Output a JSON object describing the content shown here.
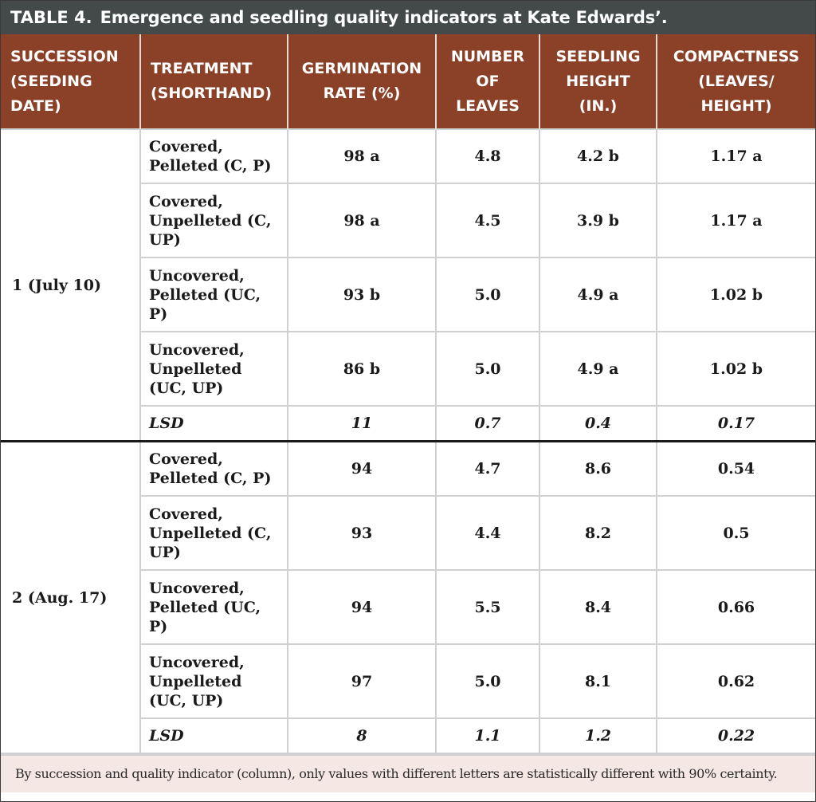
{
  "title": {
    "label": "TABLE 4.",
    "text": "Emergence and seedling quality indicators at Kate Edwards’."
  },
  "headers": [
    "SUCCESSION (SEEDING DATE)",
    "TREATMENT (SHORTHAND)",
    "GERMINATION RATE (%)",
    "NUMBER OF LEAVES",
    "SEEDLING HEIGHT (IN.)",
    "COMPACTNESS (LEAVES/ HEIGHT)"
  ],
  "groups": [
    {
      "succession": "1 (July 10)",
      "rows": [
        {
          "treatment": "Covered, Pelleted (C, P)",
          "germination": "98 a",
          "leaves": "4.8",
          "height": "4.2 b",
          "compactness": "1.17 a"
        },
        {
          "treatment": "Covered, Unpelleted (C, UP)",
          "germination": "98 a",
          "leaves": "4.5",
          "height": "3.9 b",
          "compactness": "1.17 a"
        },
        {
          "treatment": "Uncovered, Pelleted (UC, P)",
          "germination": "93 b",
          "leaves": "5.0",
          "height": "4.9 a",
          "compactness": "1.02 b"
        },
        {
          "treatment": "Uncovered, Unpelleted (UC, UP)",
          "germination": "86 b",
          "leaves": "5.0",
          "height": "4.9 a",
          "compactness": "1.02 b"
        }
      ],
      "lsd": {
        "label": "LSD",
        "germination": "11",
        "leaves": "0.7",
        "height": "0.4",
        "compactness": "0.17"
      }
    },
    {
      "succession": "2 (Aug. 17)",
      "rows": [
        {
          "treatment": "Covered, Pelleted (C, P)",
          "germination": "94",
          "leaves": "4.7",
          "height": "8.6",
          "compactness": "0.54"
        },
        {
          "treatment": "Covered, Unpelleted (C, UP)",
          "germination": "93",
          "leaves": "4.4",
          "height": "8.2",
          "compactness": "0.5"
        },
        {
          "treatment": "Uncovered, Pelleted (UC, P)",
          "germination": "94",
          "leaves": "5.5",
          "height": "8.4",
          "compactness": "0.66"
        },
        {
          "treatment": "Uncovered, Unpelleted (UC, UP)",
          "germination": "97",
          "leaves": "5.0",
          "height": "8.1",
          "compactness": "0.62"
        }
      ],
      "lsd": {
        "label": "LSD",
        "germination": "8",
        "leaves": "1.1",
        "height": "1.2",
        "compactness": "0.22"
      }
    }
  ],
  "footnote": "By succession and quality indicator (column), only values with different letters are statistically different with 90% certainty.",
  "colors": {
    "title_bg": "#444a4a",
    "header_bg": "#8b4128",
    "footnote_bg": "#f5e8e4"
  }
}
